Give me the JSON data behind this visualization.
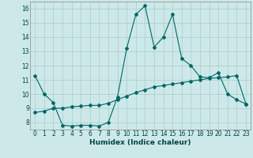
{
  "title": "",
  "xlabel": "Humidex (Indice chaleur)",
  "ylabel": "",
  "bg_color": "#cde8e8",
  "grid_color": "#aacccc",
  "line_color": "#006666",
  "xlim": [
    -0.5,
    23.5
  ],
  "ylim": [
    7.5,
    16.5
  ],
  "yticks": [
    8,
    9,
    10,
    11,
    12,
    13,
    14,
    15,
    16
  ],
  "xticks": [
    0,
    1,
    2,
    3,
    4,
    5,
    6,
    7,
    8,
    9,
    10,
    11,
    12,
    13,
    14,
    15,
    16,
    17,
    18,
    19,
    20,
    21,
    22,
    23
  ],
  "line1_x": [
    0,
    1,
    2,
    3,
    4,
    5,
    6,
    7,
    8,
    9,
    10,
    11,
    12,
    13,
    14,
    15,
    16,
    17,
    18,
    19,
    20,
    21,
    22,
    23
  ],
  "line1_y": [
    11.3,
    10.0,
    9.4,
    7.8,
    7.75,
    7.8,
    7.8,
    7.75,
    8.0,
    9.8,
    13.2,
    15.6,
    16.2,
    13.3,
    14.0,
    15.6,
    12.5,
    12.0,
    11.2,
    11.15,
    11.5,
    10.0,
    9.6,
    9.3
  ],
  "line2_x": [
    0,
    1,
    2,
    3,
    4,
    5,
    6,
    7,
    8,
    9,
    10,
    11,
    12,
    13,
    14,
    15,
    16,
    17,
    18,
    19,
    20,
    21,
    22,
    23
  ],
  "line2_y": [
    8.7,
    8.8,
    9.0,
    9.0,
    9.1,
    9.15,
    9.2,
    9.2,
    9.35,
    9.6,
    9.85,
    10.1,
    10.3,
    10.5,
    10.6,
    10.7,
    10.8,
    10.9,
    11.0,
    11.1,
    11.15,
    11.2,
    11.3,
    9.3
  ],
  "marker": "D",
  "markersize": 2.0,
  "linewidth": 0.8,
  "tick_fontsize": 5.5,
  "xlabel_fontsize": 6.5,
  "label_color": "#004444"
}
